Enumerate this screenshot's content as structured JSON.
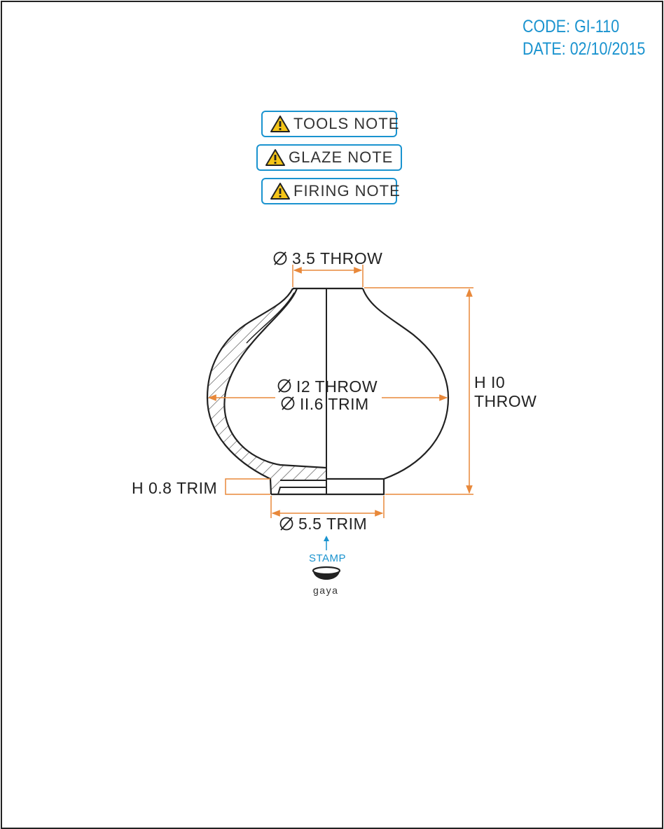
{
  "header": {
    "code": "CODE: GI-110",
    "date": "DATE: 02/10/2015"
  },
  "notes": [
    {
      "label": "TOOLS NOTE",
      "icon": "warning-icon"
    },
    {
      "label": "GLAZE NOTE",
      "icon": "warning-icon"
    },
    {
      "label": "FIRING NOTE",
      "icon": "warning-icon"
    }
  ],
  "dimensions": {
    "top_opening": "3.5 THROW",
    "max_diameter_throw": "I2 THROW",
    "max_diameter_trim": "II.6 TRIM",
    "height_line1": "H I0",
    "height_line2": "THROW",
    "foot_height": "H 0.8 TRIM",
    "foot_diameter": "5.5 TRIM"
  },
  "stamp": {
    "label": "STAMP",
    "brand": "gaya"
  },
  "colors": {
    "accent": "#1a93cf",
    "dimension": "#e8883a",
    "line": "#222222",
    "warning": "#f5c518"
  }
}
